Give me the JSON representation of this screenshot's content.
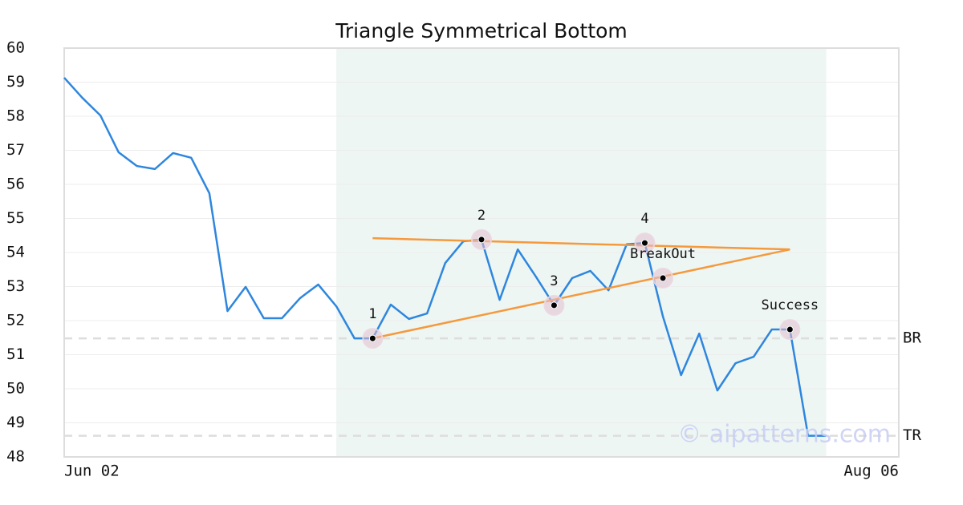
{
  "chart_data": {
    "type": "line",
    "title": "Triangle Symmetrical Bottom",
    "watermark": "© aipatterns.com",
    "categories": [
      "Jun 02",
      null,
      null,
      null,
      null,
      null,
      null,
      null,
      null,
      null,
      null,
      null,
      null,
      null,
      null,
      null,
      null,
      null,
      null,
      null,
      null,
      null,
      null,
      null,
      null,
      null,
      null,
      null,
      null,
      null,
      null,
      null,
      null,
      null,
      null,
      null,
      null,
      null,
      null,
      null,
      null,
      null,
      null,
      null,
      null,
      null,
      "Aug 06"
    ],
    "series": [
      {
        "color": "#2e86de",
        "values": [
          59.13,
          58.54,
          58.02,
          56.94,
          56.54,
          56.45,
          56.92,
          56.78,
          55.74,
          52.28,
          52.99,
          52.07,
          52.07,
          52.66,
          53.06,
          52.42,
          51.48,
          51.48,
          52.47,
          52.05,
          52.21,
          53.69,
          54.33,
          54.38,
          52.61,
          54.09,
          53.29,
          52.45,
          53.25,
          53.46,
          52.89,
          54.24,
          54.28,
          52.12,
          50.4,
          51.62,
          49.95,
          50.75,
          50.94,
          51.74,
          51.74,
          48.62,
          48.62,
          null,
          null,
          null,
          null
        ]
      }
    ],
    "ylim": [
      48,
      60
    ],
    "yticks": [
      48,
      49,
      50,
      51,
      52,
      53,
      54,
      55,
      56,
      57,
      58,
      59,
      60
    ],
    "grid": true,
    "shade": {
      "from": 15,
      "to": 42,
      "color": "#eef6f3"
    },
    "trendlines": [
      {
        "color": "#f5993d",
        "x": [
          17,
          40
        ],
        "values": [
          54.42,
          54.09
        ]
      },
      {
        "color": "#f5993d",
        "x": [
          17,
          40
        ],
        "values": [
          51.48,
          54.09
        ]
      }
    ],
    "markers": [
      {
        "label": "1",
        "x": 17,
        "value": 51.48
      },
      {
        "label": "2",
        "x": 23,
        "value": 54.38
      },
      {
        "label": "3",
        "x": 27,
        "value": 52.45
      },
      {
        "label": "4",
        "x": 32,
        "value": 54.28
      },
      {
        "label": "BreakOut",
        "x": 33,
        "value": 53.25
      },
      {
        "label": "Success",
        "x": 40,
        "value": 51.74
      }
    ],
    "reference_lines": [
      {
        "label": "BR",
        "value": 51.48
      },
      {
        "label": "TR",
        "value": 48.62
      }
    ]
  }
}
